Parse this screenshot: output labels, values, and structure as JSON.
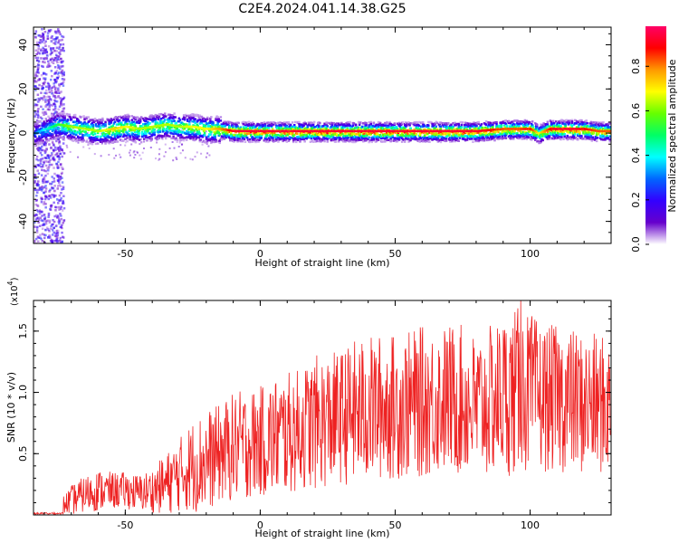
{
  "title": "C2E4.2024.041.14.38.G25",
  "colors": {
    "snr_line": "#ee2222",
    "baseline": "#cc2222",
    "axis": "#000000",
    "background": "#ffffff"
  },
  "chart_data": [
    {
      "type": "heatmap",
      "name": "spectrogram",
      "xlabel": "Height of straight line (km)",
      "ylabel": "Frequency (Hz)",
      "xlim": [
        -84,
        130
      ],
      "ylim": [
        -50,
        48
      ],
      "xticks": [
        -50,
        0,
        50,
        100
      ],
      "yticks": [
        -40,
        -20,
        0,
        20,
        40
      ],
      "colorbar": {
        "label": "Normalized spectral amplitude",
        "range": [
          0,
          0.98
        ],
        "ticks": [
          "0.0",
          "0.2",
          "0.4",
          "0.6",
          "0.8"
        ],
        "colormap": [
          "#ffffff",
          "#6600cc",
          "#3300ff",
          "#0066ff",
          "#00ffff",
          "#00ff66",
          "#66ff00",
          "#ffff00",
          "#ff9900",
          "#ff0000",
          "#ff0066"
        ]
      },
      "signal_band": {
        "x": [
          -84,
          -75,
          -70,
          -65,
          -60,
          -55,
          -50,
          -45,
          -40,
          -35,
          -30,
          -25,
          -20,
          -15,
          -10,
          0,
          10,
          20,
          30,
          40,
          50,
          60,
          70,
          80,
          90,
          95,
          100,
          103,
          107,
          110,
          115,
          120,
          125,
          130
        ],
        "center_freq_hz": [
          0,
          4,
          3,
          2,
          1,
          2,
          3,
          2,
          3,
          4,
          3,
          3,
          2,
          2,
          1,
          1,
          1,
          1,
          1,
          1,
          1,
          1,
          1,
          1,
          2,
          2,
          2,
          0,
          2,
          2,
          2,
          2,
          1,
          1
        ],
        "peak_amplitude": [
          0.3,
          0.55,
          0.65,
          0.65,
          0.65,
          0.75,
          0.7,
          0.65,
          0.65,
          0.65,
          0.65,
          0.7,
          0.7,
          0.8,
          0.95,
          0.95,
          0.95,
          0.95,
          0.95,
          0.95,
          0.95,
          0.95,
          0.95,
          0.95,
          0.85,
          0.85,
          0.9,
          0.7,
          0.9,
          0.95,
          0.95,
          0.9,
          0.85,
          0.85
        ]
      }
    },
    {
      "type": "line",
      "name": "snr",
      "xlabel": "Height of straight line (km)",
      "ylabel": "SNR (10 * v/v)",
      "y_multiplier": "(x10",
      "y_multiplier_exp": "4",
      "y_multiplier_close": ")",
      "xlim": [
        -84,
        130
      ],
      "ylim": [
        0,
        1.75
      ],
      "xticks": [
        -50,
        0,
        50,
        100
      ],
      "yticks": [
        "0.5",
        "1.0",
        "1.5"
      ],
      "y_tick_values": [
        0.5,
        1.0,
        1.5
      ],
      "envelope": {
        "x": [
          -84,
          -75,
          -70,
          -65,
          -60,
          -55,
          -50,
          -45,
          -40,
          -35,
          -30,
          -25,
          -20,
          -15,
          -10,
          -5,
          0,
          5,
          10,
          15,
          20,
          25,
          30,
          35,
          40,
          45,
          50,
          55,
          60,
          65,
          70,
          75,
          80,
          85,
          90,
          95,
          100,
          105,
          110,
          115,
          120,
          125,
          130
        ],
        "mean": [
          0.01,
          0.05,
          0.12,
          0.17,
          0.2,
          0.2,
          0.2,
          0.18,
          0.2,
          0.25,
          0.33,
          0.4,
          0.44,
          0.5,
          0.55,
          0.58,
          0.6,
          0.63,
          0.66,
          0.7,
          0.75,
          0.77,
          0.8,
          0.83,
          0.86,
          0.88,
          0.88,
          0.9,
          0.92,
          0.93,
          0.95,
          0.93,
          0.88,
          0.92,
          0.98,
          1.0,
          1.0,
          0.95,
          0.95,
          0.93,
          0.9,
          0.9,
          0.88
        ],
        "amplitude": [
          0.005,
          0.05,
          0.12,
          0.15,
          0.17,
          0.15,
          0.15,
          0.15,
          0.18,
          0.25,
          0.3,
          0.38,
          0.42,
          0.4,
          0.45,
          0.45,
          0.45,
          0.5,
          0.5,
          0.5,
          0.55,
          0.55,
          0.55,
          0.6,
          0.6,
          0.6,
          0.6,
          0.6,
          0.62,
          0.6,
          0.62,
          0.62,
          0.6,
          0.62,
          0.65,
          0.7,
          0.65,
          0.6,
          0.6,
          0.6,
          0.58,
          0.58,
          0.55
        ]
      },
      "peak": {
        "x": 96.5,
        "y": 1.75
      }
    }
  ]
}
